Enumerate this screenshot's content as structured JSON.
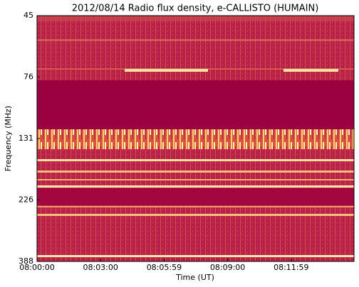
{
  "chart_data": {
    "type": "spectrogram",
    "title": "2012/08/14  Radio flux density, e-CALLISTO (HUMAIN)",
    "x_label": "Time (UT)",
    "y_label": "Frequency (MHz)",
    "xticks": [
      "08:00:00",
      "08:03:00",
      "08:05:59",
      "08:09:00",
      "08:11:59"
    ],
    "yticks": [
      45,
      76,
      131,
      226,
      388
    ]
  }
}
